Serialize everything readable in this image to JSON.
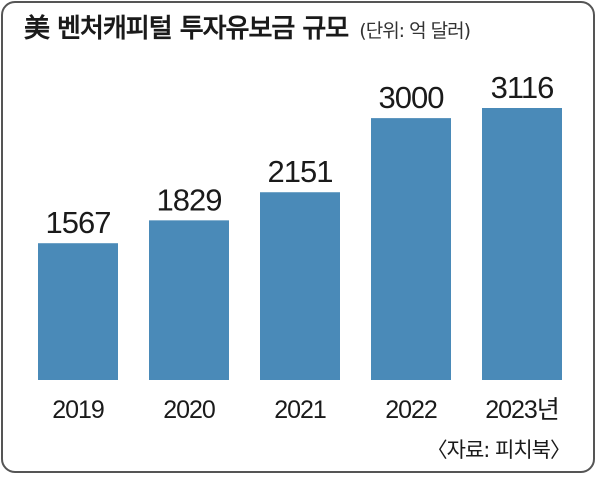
{
  "title": "美 벤처캐피털 투자유보금 규모",
  "unit": "(단위: 억 달러)",
  "source": "〈자료: 피치북〉",
  "colors": {
    "bar": "#4a8ab8",
    "text": "#1a1a1a",
    "frame": "#555555"
  },
  "chart_data": {
    "type": "bar",
    "title": "美 벤처캐피털 투자유보금 규모",
    "xlabel": "",
    "ylabel": "",
    "categories": [
      "2019",
      "2020",
      "2021",
      "2022",
      "2023년"
    ],
    "values": [
      1567,
      1829,
      2151,
      3000,
      3116
    ],
    "data_labels": [
      "1567",
      "1829",
      "2151",
      "3000",
      "3116"
    ],
    "ylim": [
      0,
      3116
    ],
    "grid": false,
    "legend": "none"
  }
}
